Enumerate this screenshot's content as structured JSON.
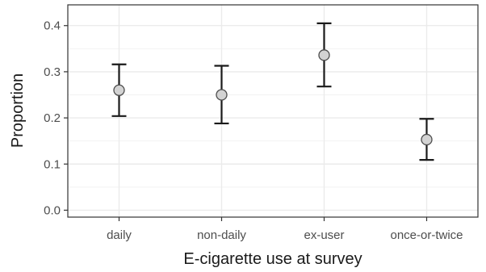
{
  "chart_data": {
    "type": "scatter",
    "xlabel": "E-cigarette use at survey",
    "ylabel": "Proportion",
    "categories": [
      "daily",
      "non-daily",
      "ex-user",
      "once-or-twice"
    ],
    "points": [
      {
        "category": "daily",
        "value": 0.26,
        "lower": 0.204,
        "upper": 0.316
      },
      {
        "category": "non-daily",
        "value": 0.25,
        "lower": 0.188,
        "upper": 0.313
      },
      {
        "category": "ex-user",
        "value": 0.336,
        "lower": 0.268,
        "upper": 0.405
      },
      {
        "category": "once-or-twice",
        "value": 0.153,
        "lower": 0.109,
        "upper": 0.198
      }
    ],
    "ylim": [
      -0.015,
      0.445
    ],
    "yticks": [
      0.0,
      0.1,
      0.2,
      0.3,
      0.4
    ],
    "ytick_labels": [
      "0.0",
      "0.1",
      "0.2",
      "0.3",
      "0.4"
    ],
    "grid": true,
    "error_bars": true
  },
  "colors": {
    "panel_border": "#333333",
    "grid_major": "#ebebeb",
    "grid_minor": "#f2f2f2",
    "errorbar": "#1a1a1a",
    "point_fill": "#d3d3d3",
    "point_stroke": "#4d4d4d"
  }
}
